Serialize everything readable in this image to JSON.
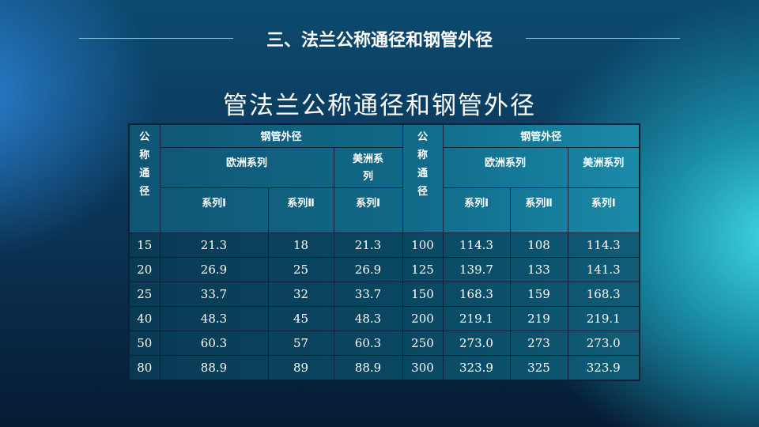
{
  "slide_heading": "三、法兰公称通径和钢管外径",
  "table_title": "管法兰公称通径和钢管外径",
  "header": {
    "nominal": "公\n称\n通\n径",
    "steel_od": "钢管外径",
    "europe": "欧洲系列",
    "america_left": "美洲系\n列",
    "america_right": "美洲系列",
    "series1": "系列Ⅰ",
    "series2": "系列Ⅱ"
  },
  "rows": [
    [
      "15",
      "21.3",
      "18",
      "21.3",
      "100",
      "114.3",
      "108",
      "114.3"
    ],
    [
      "20",
      "26.9",
      "25",
      "26.9",
      "125",
      "139.7",
      "133",
      "141.3"
    ],
    [
      "25",
      "33.7",
      "32",
      "33.7",
      "150",
      "168.3",
      "159",
      "168.3"
    ],
    [
      "40",
      "48.3",
      "45",
      "48.3",
      "200",
      "219.1",
      "219",
      "219.1"
    ],
    [
      "50",
      "60.3",
      "57",
      "60.3",
      "250",
      "273.0",
      "273",
      "273.0"
    ],
    [
      "80",
      "88.9",
      "89",
      "88.9",
      "300",
      "323.9",
      "325",
      "323.9"
    ]
  ]
}
